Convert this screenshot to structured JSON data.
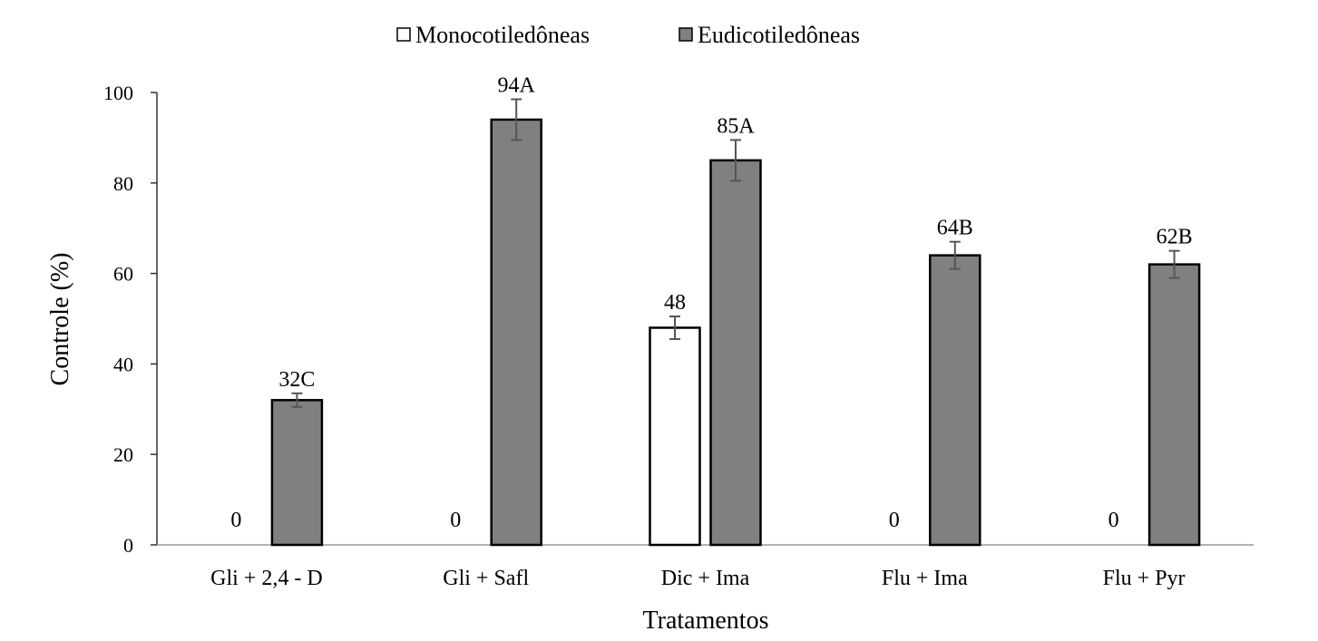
{
  "chart_data": {
    "type": "bar",
    "title": "",
    "xlabel": "Tratamentos",
    "ylabel": "Controle (%)",
    "ylim": [
      0,
      100
    ],
    "yticks": [
      0,
      20,
      40,
      60,
      80,
      100
    ],
    "ytick_labels": [
      "0",
      "20",
      "40",
      "60",
      "80",
      "100"
    ],
    "grid": false,
    "legend_position": "top-center",
    "categories": [
      "Gli + 2,4 - D",
      "Gli + Safl",
      "Dic + Ima",
      "Flu + Ima",
      "Flu + Pyr"
    ],
    "series": [
      {
        "name": "Monocotiledôneas",
        "color": "#ffffff",
        "values": [
          0,
          0,
          48,
          0,
          0
        ],
        "errors": [
          0,
          0,
          2.5,
          0,
          0
        ],
        "labels": [
          "0",
          "0",
          "48",
          "0",
          "0"
        ]
      },
      {
        "name": "Eudicotiledôneas",
        "color": "#808080",
        "values": [
          32,
          94,
          85,
          64,
          62
        ],
        "errors": [
          1.5,
          4.5,
          4.5,
          3,
          3
        ],
        "labels": [
          "32C",
          "94A",
          "85A",
          "64B",
          "62B"
        ]
      }
    ]
  }
}
